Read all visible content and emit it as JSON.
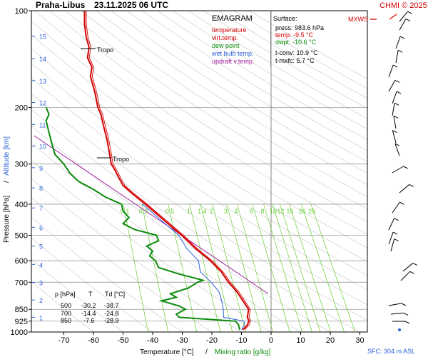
{
  "header": {
    "station": "Praha-Libus",
    "datetime": "23.11.2025 06 UTC",
    "copyright": "CHMI © 2025"
  },
  "colors": {
    "temperature": "#d40000",
    "virt_temp": "#d40000",
    "dew_point": "#0a8a0a",
    "wet_bulb": "#2a5fd8",
    "updraft": "#a020a0",
    "mixing_ratio": "#66cc33",
    "grid": "#9a9a9a",
    "wind": "#000000",
    "mxws": "#d40000"
  },
  "legend": {
    "title": "EMAGRAM",
    "items": [
      {
        "label": "temperature",
        "color": "#d40000"
      },
      {
        "label": "virt.temp.",
        "color": "#d40000"
      },
      {
        "label": "dew point",
        "color": "#0a8a0a"
      },
      {
        "label": "wet bulb temp.",
        "color": "#2a5fd8"
      },
      {
        "label": "updraft v.temp.",
        "color": "#a020a0"
      }
    ]
  },
  "surface": {
    "title": "Surface:",
    "press": "press: 983.6 hPa",
    "temp": "temp: -9.5 °C",
    "dwpt": "dwpt: -10.6 °C",
    "tconv": "t-conv: 10.9 °C",
    "tmxfc": "t-mxfc: 5.7 °C"
  },
  "table": {
    "headers": [
      "p [hPa]",
      "T",
      "Td [°C]"
    ],
    "rows": [
      [
        "500",
        "-30.2",
        "-38.7"
      ],
      [
        "700",
        "-14.4",
        "-24.8"
      ],
      [
        "850",
        "-7.6",
        "-28.9"
      ]
    ]
  },
  "labels": {
    "tropo": "Tropo",
    "mxws": "MXWS",
    "sfc": "SFC: 304 m ASL"
  },
  "axes": {
    "xlabel_temp": "Temperature [°C]",
    "xlabel_sep": "/",
    "xlabel_mix": "Mixing ratio [g/kg]",
    "ylabel_pressure": "Pressure [hPa]",
    "ylabel_sep": "/",
    "ylabel_altitude": "Altitude [km]"
  },
  "chart_data": {
    "type": "line",
    "y_scale": "log",
    "ylim": [
      1000,
      100
    ],
    "xlim": [
      -80,
      40
    ],
    "x_ticks": [
      -70,
      -60,
      -50,
      -40,
      -30,
      -20,
      -10,
      0,
      10,
      20,
      30
    ],
    "p_ticks": [
      100,
      200,
      300,
      400,
      500,
      600,
      700,
      850,
      925,
      1000
    ],
    "altitude_km": [
      {
        "km": "1",
        "p": 900
      },
      {
        "km": "2",
        "p": 795
      },
      {
        "km": "3",
        "p": 701
      },
      {
        "km": "4",
        "p": 616
      },
      {
        "km": "5",
        "p": 540
      },
      {
        "km": "6",
        "p": 472
      },
      {
        "km": "7",
        "p": 411
      },
      {
        "km": "8",
        "p": 356
      },
      {
        "km": "9",
        "p": 308
      },
      {
        "km": "10",
        "p": 264
      },
      {
        "km": "11",
        "p": 226
      },
      {
        "km": "12",
        "p": 193
      },
      {
        "km": "13",
        "p": 165
      },
      {
        "km": "14",
        "p": 141
      },
      {
        "km": "15",
        "p": 120
      }
    ],
    "mixing_ratio_labels": [
      "0.1",
      "0.2",
      "0.5",
      "1",
      "1.4",
      "2",
      "3",
      "4",
      "6",
      "8",
      "10",
      "12",
      "15",
      "20",
      "25"
    ],
    "series": [
      {
        "name": "temperature",
        "p": [
          983.6,
          950,
          925,
          900,
          850,
          800,
          750,
          700,
          650,
          600,
          550,
          500,
          450,
          400,
          370,
          350,
          330,
          310,
          300,
          280,
          250,
          230,
          210,
          200,
          180,
          160,
          150,
          140,
          130,
          120,
          110,
          100
        ],
        "t": [
          -9.5,
          -8,
          -7.5,
          -8,
          -7.6,
          -9.5,
          -11.5,
          -14.4,
          -16.8,
          -20.5,
          -25.5,
          -30.2,
          -36,
          -42.5,
          -47,
          -50,
          -51.5,
          -53,
          -54,
          -54.5,
          -55.5,
          -56.5,
          -57.5,
          -58.5,
          -59.5,
          -61,
          -60.5,
          -62,
          -61.5,
          -62.5,
          -63,
          -63
        ]
      },
      {
        "name": "dew point",
        "p": [
          983.6,
          950,
          925,
          900,
          880,
          860,
          850,
          830,
          800,
          780,
          760,
          730,
          700,
          690,
          660,
          630,
          600,
          580,
          560,
          540,
          520,
          500,
          480,
          460,
          440,
          420,
          400,
          380,
          360,
          340,
          320,
          300,
          280,
          260,
          240,
          220,
          210,
          200
        ],
        "t": [
          -10.6,
          -11,
          -12,
          -31,
          -32,
          -30,
          -28.9,
          -31,
          -37,
          -32,
          -34,
          -28,
          -24.8,
          -23,
          -31,
          -38,
          -39,
          -41,
          -40,
          -42,
          -38,
          -38.7,
          -46,
          -50,
          -48,
          -50,
          -50.5,
          -56,
          -60,
          -65,
          -68,
          -70,
          -73,
          -74,
          -75,
          -76,
          -75,
          -76
        ]
      }
    ]
  }
}
